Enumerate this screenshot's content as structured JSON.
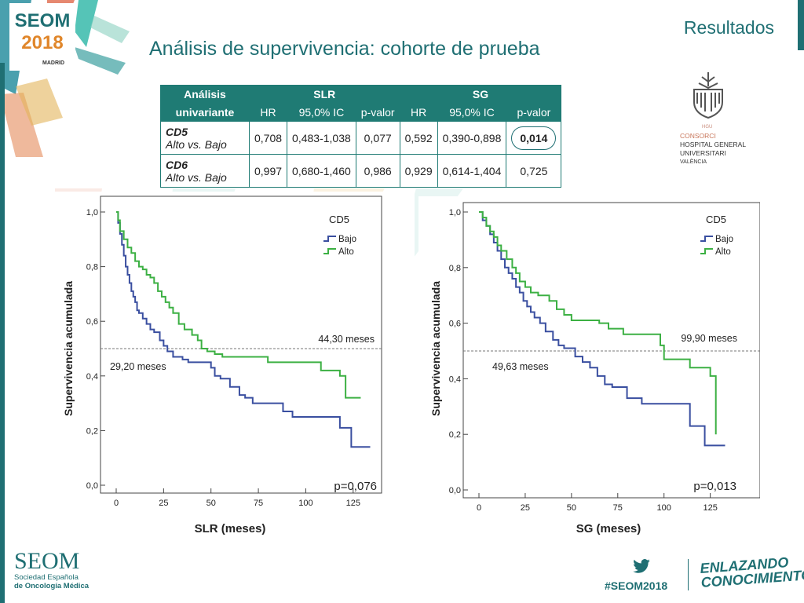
{
  "header": {
    "section": "Resultados",
    "title": "Análisis de supervivencia: cohorte de prueba"
  },
  "logo": {
    "top": "SEOM",
    "year": "2018",
    "city": "MADRID"
  },
  "hospital": {
    "lines": [
      "CONSORCI",
      "HOSPITAL GENERAL",
      "UNIVERSITARI",
      "VALÈNCIA"
    ],
    "emblem_small": "HGU"
  },
  "table": {
    "corner_1": "Análisis",
    "corner_2": "univariante",
    "group_slr": "SLR",
    "group_sg": "SG",
    "cols": [
      "HR",
      "95,0% IC",
      "p-valor",
      "HR",
      "95,0% IC",
      "p-valor"
    ],
    "rows": [
      {
        "name": "CD5",
        "sub": "Alto vs. Bajo",
        "values": [
          "0,708",
          "0,483-1,038",
          "0,077",
          "0,592",
          "0,390-0,898",
          "0,014"
        ]
      },
      {
        "name": "CD6",
        "sub": "Alto vs. Bajo",
        "values": [
          "0,997",
          "0,680-1,460",
          "0,986",
          "0,929",
          "0,614-1,404",
          "0,725"
        ]
      }
    ]
  },
  "colors": {
    "teal": "#1f6f73",
    "table_header": "#1f7b74",
    "bajo": "#3a4fa0",
    "alto": "#3cb043"
  },
  "chart_data": [
    {
      "type": "line",
      "title": "",
      "legend_title": "CD5",
      "xlabel": "SLR (meses)",
      "ylabel": "Supervivencia acumulada",
      "xlim": [
        0,
        140
      ],
      "ylim": [
        0,
        1
      ],
      "xticks": [
        "0",
        "25",
        "50",
        "75",
        "100",
        "125"
      ],
      "yticks": [
        "0,0",
        "0,2",
        "0,4",
        "0,6",
        "0,8",
        "1,0"
      ],
      "reference_y": 0.5,
      "median_labels": [
        {
          "text": "44,30 meses",
          "series": "Alto"
        },
        {
          "text": "29,20 meses",
          "series": "Bajo"
        }
      ],
      "pvalue": "p=0,076",
      "legend_position": "top-right",
      "series": [
        {
          "name": "Bajo",
          "color": "#3a4fa0",
          "points": [
            [
              0,
              1.0
            ],
            [
              1,
              0.96
            ],
            [
              2,
              0.92
            ],
            [
              3,
              0.88
            ],
            [
              4,
              0.84
            ],
            [
              5,
              0.8
            ],
            [
              6,
              0.77
            ],
            [
              7,
              0.74
            ],
            [
              8,
              0.71
            ],
            [
              9,
              0.69
            ],
            [
              10,
              0.67
            ],
            [
              11,
              0.64
            ],
            [
              12,
              0.63
            ],
            [
              14,
              0.61
            ],
            [
              16,
              0.59
            ],
            [
              18,
              0.57
            ],
            [
              20,
              0.56
            ],
            [
              23,
              0.53
            ],
            [
              25,
              0.51
            ],
            [
              27,
              0.49
            ],
            [
              30,
              0.47
            ],
            [
              35,
              0.46
            ],
            [
              38,
              0.45
            ],
            [
              45,
              0.45
            ],
            [
              50,
              0.43
            ],
            [
              52,
              0.4
            ],
            [
              55,
              0.39
            ],
            [
              60,
              0.36
            ],
            [
              65,
              0.33
            ],
            [
              68,
              0.32
            ],
            [
              72,
              0.3
            ],
            [
              82,
              0.3
            ],
            [
              88,
              0.27
            ],
            [
              93,
              0.25
            ],
            [
              100,
              0.25
            ],
            [
              114,
              0.25
            ],
            [
              118,
              0.21
            ],
            [
              124,
              0.21
            ],
            [
              124,
              0.14
            ],
            [
              134,
              0.14
            ]
          ]
        },
        {
          "name": "Alto",
          "color": "#3cb043",
          "points": [
            [
              0,
              1.0
            ],
            [
              1,
              0.97
            ],
            [
              2,
              0.93
            ],
            [
              4,
              0.9
            ],
            [
              6,
              0.87
            ],
            [
              8,
              0.85
            ],
            [
              10,
              0.82
            ],
            [
              12,
              0.8
            ],
            [
              14,
              0.79
            ],
            [
              16,
              0.77
            ],
            [
              18,
              0.76
            ],
            [
              20,
              0.74
            ],
            [
              22,
              0.71
            ],
            [
              24,
              0.69
            ],
            [
              26,
              0.67
            ],
            [
              28,
              0.65
            ],
            [
              30,
              0.63
            ],
            [
              33,
              0.59
            ],
            [
              36,
              0.57
            ],
            [
              40,
              0.55
            ],
            [
              43,
              0.53
            ],
            [
              45,
              0.5
            ],
            [
              48,
              0.49
            ],
            [
              52,
              0.48
            ],
            [
              56,
              0.47
            ],
            [
              65,
              0.47
            ],
            [
              72,
              0.47
            ],
            [
              80,
              0.45
            ],
            [
              90,
              0.45
            ],
            [
              100,
              0.45
            ],
            [
              108,
              0.42
            ],
            [
              112,
              0.42
            ],
            [
              118,
              0.4
            ],
            [
              121,
              0.4
            ],
            [
              121,
              0.32
            ],
            [
              129,
              0.32
            ]
          ]
        }
      ]
    },
    {
      "type": "line",
      "title": "",
      "legend_title": "CD5",
      "xlabel": "SG (meses)",
      "ylabel": "Supervivencia acumulada",
      "xlim": [
        0,
        140
      ],
      "ylim": [
        0,
        1
      ],
      "xticks": [
        "0",
        "25",
        "50",
        "75",
        "100",
        "125"
      ],
      "yticks": [
        "0,0",
        "0,2",
        "0,4",
        "0,6",
        "0,8",
        "1,0"
      ],
      "reference_y": 0.5,
      "median_labels": [
        {
          "text": "99,90 meses",
          "series": "Alto"
        },
        {
          "text": "49,63 meses",
          "series": "Bajo"
        }
      ],
      "pvalue": "p=0,013",
      "legend_position": "top-right",
      "series": [
        {
          "name": "Bajo",
          "color": "#3a4fa0",
          "points": [
            [
              0,
              1.0
            ],
            [
              2,
              0.97
            ],
            [
              4,
              0.95
            ],
            [
              6,
              0.92
            ],
            [
              8,
              0.89
            ],
            [
              10,
              0.86
            ],
            [
              12,
              0.83
            ],
            [
              14,
              0.8
            ],
            [
              16,
              0.78
            ],
            [
              18,
              0.76
            ],
            [
              20,
              0.73
            ],
            [
              22,
              0.71
            ],
            [
              24,
              0.68
            ],
            [
              26,
              0.66
            ],
            [
              28,
              0.64
            ],
            [
              30,
              0.62
            ],
            [
              33,
              0.6
            ],
            [
              36,
              0.57
            ],
            [
              40,
              0.54
            ],
            [
              43,
              0.52
            ],
            [
              46,
              0.51
            ],
            [
              50,
              0.51
            ],
            [
              52,
              0.48
            ],
            [
              56,
              0.46
            ],
            [
              60,
              0.44
            ],
            [
              64,
              0.41
            ],
            [
              68,
              0.38
            ],
            [
              72,
              0.37
            ],
            [
              80,
              0.33
            ],
            [
              88,
              0.31
            ],
            [
              95,
              0.31
            ],
            [
              112,
              0.31
            ],
            [
              114,
              0.23
            ],
            [
              122,
              0.23
            ],
            [
              122,
              0.16
            ],
            [
              133,
              0.16
            ]
          ]
        },
        {
          "name": "Alto",
          "color": "#3cb043",
          "points": [
            [
              0,
              1.0
            ],
            [
              2,
              0.98
            ],
            [
              4,
              0.95
            ],
            [
              6,
              0.93
            ],
            [
              8,
              0.91
            ],
            [
              10,
              0.88
            ],
            [
              12,
              0.86
            ],
            [
              15,
              0.83
            ],
            [
              18,
              0.8
            ],
            [
              20,
              0.78
            ],
            [
              22,
              0.75
            ],
            [
              25,
              0.73
            ],
            [
              28,
              0.71
            ],
            [
              32,
              0.7
            ],
            [
              38,
              0.68
            ],
            [
              42,
              0.65
            ],
            [
              46,
              0.63
            ],
            [
              50,
              0.61
            ],
            [
              60,
              0.61
            ],
            [
              65,
              0.6
            ],
            [
              70,
              0.58
            ],
            [
              78,
              0.56
            ],
            [
              90,
              0.56
            ],
            [
              98,
              0.52
            ],
            [
              100,
              0.47
            ],
            [
              110,
              0.47
            ],
            [
              114,
              0.44
            ],
            [
              120,
              0.44
            ],
            [
              125,
              0.41
            ],
            [
              128,
              0.41
            ],
            [
              128,
              0.2
            ]
          ]
        }
      ]
    }
  ],
  "footer": {
    "seom": "SEOM",
    "sub1": "Sociedad Española",
    "sub2": "de Oncología Médica",
    "hashtag": "#SEOM2018",
    "slogan1": "ENLAZANDO",
    "slogan2": "CONOCIMIENTO"
  }
}
